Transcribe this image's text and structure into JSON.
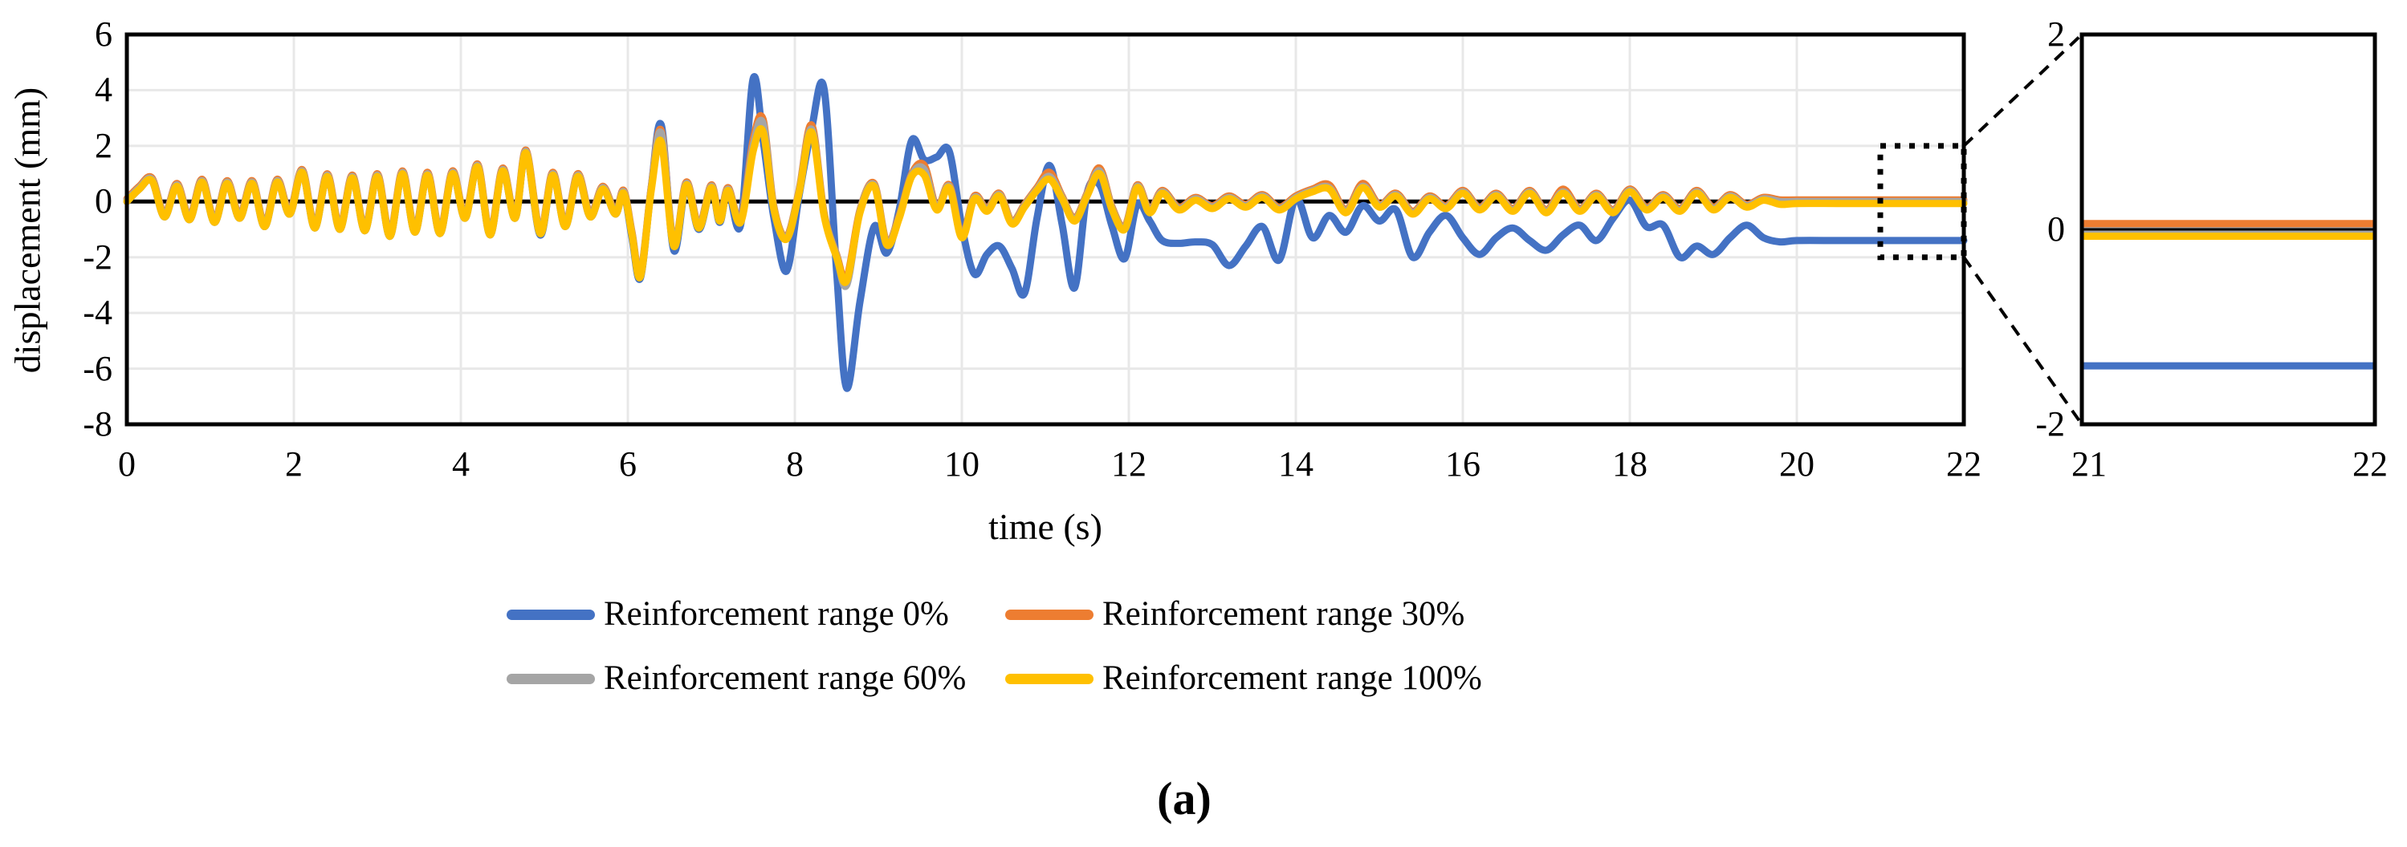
{
  "figure": {
    "caption": "(a)",
    "colors": {
      "blue": "#4472C4",
      "orange": "#ED7D31",
      "gray": "#A5A5A5",
      "yellow": "#FFC000",
      "grid": "#E8E8E8",
      "axis": "#000000"
    }
  },
  "chart_data": {
    "type": "line",
    "title": "",
    "xlabel": "time (s)",
    "ylabel": "displacement (mm)",
    "legend_position": "bottom",
    "main": {
      "xlim": [
        0,
        22
      ],
      "ylim": [
        -8,
        6
      ],
      "x_ticks": [
        0,
        2,
        4,
        6,
        8,
        10,
        12,
        14,
        16,
        18,
        20,
        22
      ],
      "y_ticks": [
        6,
        4,
        2,
        0,
        -2,
        -4,
        -6,
        -8
      ],
      "grid": true,
      "zoom_box": {
        "x": [
          21,
          22
        ],
        "y": [
          -2,
          2
        ]
      },
      "t": [
        0,
        0.15,
        0.3,
        0.45,
        0.6,
        0.75,
        0.9,
        1.05,
        1.2,
        1.35,
        1.5,
        1.65,
        1.8,
        1.95,
        2.1,
        2.25,
        2.4,
        2.55,
        2.7,
        2.85,
        3.0,
        3.15,
        3.3,
        3.45,
        3.6,
        3.75,
        3.9,
        4.05,
        4.2,
        4.35,
        4.5,
        4.65,
        4.78,
        4.95,
        5.1,
        5.25,
        5.4,
        5.55,
        5.7,
        5.85,
        5.95,
        6.05,
        6.15,
        6.28,
        6.4,
        6.55,
        6.7,
        6.85,
        7.0,
        7.1,
        7.2,
        7.35,
        7.5,
        7.62,
        7.75,
        7.9,
        8.05,
        8.2,
        8.35,
        8.5,
        8.62,
        8.78,
        8.95,
        9.1,
        9.25,
        9.4,
        9.55,
        9.7,
        9.85,
        10.0,
        10.15,
        10.3,
        10.45,
        10.6,
        10.75,
        10.9,
        11.05,
        11.2,
        11.35,
        11.5,
        11.65,
        11.8,
        11.95,
        12.1,
        12.25,
        12.4,
        12.6,
        12.8,
        13.0,
        13.2,
        13.4,
        13.6,
        13.8,
        14.0,
        14.2,
        14.4,
        14.6,
        14.8,
        15.0,
        15.2,
        15.4,
        15.6,
        15.8,
        16.0,
        16.2,
        16.4,
        16.6,
        16.8,
        17.0,
        17.2,
        17.4,
        17.6,
        17.8,
        18.0,
        18.2,
        18.4,
        18.6,
        18.8,
        19.0,
        19.2,
        19.4,
        19.6,
        19.8,
        20.0,
        20.5,
        21.0,
        21.5,
        22.0
      ],
      "series": [
        {
          "name": "Reinforcement range 0%",
          "color": "#4472C4",
          "v": [
            0,
            0.45,
            0.75,
            -0.55,
            0.55,
            -0.65,
            0.7,
            -0.75,
            0.65,
            -0.6,
            0.65,
            -0.9,
            0.7,
            -0.45,
            1.05,
            -0.95,
            0.9,
            -1.0,
            0.85,
            -1.05,
            0.9,
            -1.25,
            1.0,
            -1.1,
            0.95,
            -1.15,
            1.0,
            -0.6,
            1.25,
            -1.2,
            1.1,
            -0.6,
            1.75,
            -1.2,
            0.95,
            -0.9,
            0.9,
            -0.55,
            0.45,
            -0.45,
            0.3,
            -1.3,
            -2.75,
            0.5,
            2.75,
            -1.75,
            0.6,
            -1.0,
            0.5,
            -0.75,
            0.45,
            -0.85,
            4.4,
            2.2,
            -0.6,
            -2.5,
            0.2,
            2.6,
            4.05,
            -2.5,
            -6.7,
            -3.6,
            -0.9,
            -1.85,
            -0.3,
            2.2,
            1.5,
            1.6,
            1.8,
            -0.9,
            -2.6,
            -1.9,
            -1.6,
            -2.4,
            -3.3,
            -0.6,
            1.3,
            -0.8,
            -3.1,
            0.3,
            0.6,
            -0.9,
            -2.05,
            -0.1,
            -0.7,
            -1.4,
            -1.5,
            -1.45,
            -1.55,
            -2.3,
            -1.6,
            -0.9,
            -2.1,
            0.1,
            -1.3,
            -0.5,
            -1.1,
            -0.15,
            -0.7,
            -0.3,
            -2.0,
            -1.1,
            -0.5,
            -1.3,
            -1.9,
            -1.3,
            -0.95,
            -1.4,
            -1.75,
            -1.2,
            -0.85,
            -1.4,
            -0.6,
            0.05,
            -0.9,
            -0.85,
            -2.0,
            -1.6,
            -1.9,
            -1.3,
            -0.85,
            -1.3,
            -1.45,
            -1.4,
            -1.4,
            -1.4,
            -1.4,
            -1.4
          ]
        },
        {
          "name": "Reinforcement range 30%",
          "color": "#ED7D31",
          "v": [
            0.1,
            0.55,
            0.85,
            -0.45,
            0.65,
            -0.55,
            0.8,
            -0.65,
            0.75,
            -0.5,
            0.75,
            -0.8,
            0.8,
            -0.35,
            1.15,
            -0.85,
            1.0,
            -0.9,
            0.95,
            -0.95,
            1.0,
            -1.15,
            1.1,
            -1.0,
            1.05,
            -1.05,
            1.1,
            -0.5,
            1.35,
            -1.1,
            1.2,
            -0.5,
            1.85,
            -1.05,
            1.05,
            -0.8,
            1.0,
            -0.45,
            0.55,
            -0.35,
            0.4,
            -1.1,
            -2.6,
            0.5,
            2.55,
            -1.5,
            0.7,
            -0.85,
            0.6,
            -0.6,
            0.5,
            -0.65,
            2.2,
            2.95,
            -0.2,
            -1.25,
            0.4,
            2.75,
            -0.4,
            -1.9,
            -2.75,
            -0.3,
            0.65,
            -1.45,
            -0.5,
            1.0,
            1.3,
            -0.2,
            0.6,
            -1.2,
            0.2,
            -0.25,
            0.3,
            -0.7,
            -0.1,
            0.5,
            1.05,
            0.2,
            -0.6,
            0.3,
            1.2,
            -0.2,
            -0.9,
            0.6,
            -0.3,
            0.4,
            -0.2,
            0.15,
            -0.15,
            0.2,
            -0.1,
            0.25,
            -0.2,
            0.2,
            0.45,
            0.6,
            -0.3,
            0.65,
            -0.1,
            0.3,
            -0.35,
            0.2,
            -0.15,
            0.4,
            -0.2,
            0.3,
            -0.25,
            0.4,
            -0.3,
            0.45,
            -0.25,
            0.3,
            -0.3,
            0.45,
            -0.2,
            0.25,
            -0.25,
            0.4,
            -0.2,
            0.25,
            -0.1,
            0.15,
            0.06,
            0.06,
            0.06,
            0.06,
            0.06,
            0.06
          ]
        },
        {
          "name": "Reinforcement range 60%",
          "color": "#A5A5A5",
          "v": [
            0.05,
            0.5,
            0.8,
            -0.5,
            0.6,
            -0.6,
            0.75,
            -0.7,
            0.7,
            -0.55,
            0.7,
            -0.85,
            0.75,
            -0.4,
            1.1,
            -0.9,
            0.95,
            -0.95,
            0.9,
            -1.0,
            0.95,
            -1.2,
            1.05,
            -1.05,
            1.0,
            -1.1,
            1.05,
            -0.55,
            1.3,
            -1.15,
            1.15,
            -0.55,
            1.8,
            -1.1,
            1.0,
            -0.85,
            0.95,
            -0.5,
            0.5,
            -0.4,
            0.35,
            -1.15,
            -2.65,
            0.45,
            2.45,
            -1.55,
            0.65,
            -0.9,
            0.55,
            -0.65,
            0.45,
            -0.7,
            2.0,
            2.8,
            -0.25,
            -1.3,
            0.35,
            2.6,
            -0.45,
            -1.95,
            -3.0,
            -0.35,
            0.6,
            -1.5,
            -0.55,
            0.95,
            1.15,
            -0.25,
            0.55,
            -1.25,
            0.15,
            -0.3,
            0.25,
            -0.75,
            -0.15,
            0.45,
            0.9,
            0.15,
            -0.65,
            0.25,
            1.1,
            -0.25,
            -0.95,
            0.55,
            -0.35,
            0.35,
            -0.25,
            0.1,
            -0.2,
            0.15,
            -0.15,
            0.2,
            -0.25,
            0.15,
            0.4,
            0.5,
            -0.35,
            0.55,
            -0.15,
            0.25,
            -0.4,
            0.15,
            -0.2,
            0.35,
            -0.25,
            0.25,
            -0.3,
            0.35,
            -0.35,
            0.35,
            -0.3,
            0.25,
            -0.35,
            0.4,
            -0.25,
            0.2,
            -0.3,
            0.35,
            -0.25,
            0.2,
            -0.15,
            0.1,
            0.0,
            0.0,
            0.0,
            0.0,
            0.0,
            0.0
          ]
        },
        {
          "name": "Reinforcement range 100%",
          "color": "#FFC000",
          "v": [
            0,
            0.45,
            0.75,
            -0.55,
            0.55,
            -0.65,
            0.7,
            -0.75,
            0.65,
            -0.6,
            0.65,
            -0.9,
            0.7,
            -0.45,
            1.05,
            -0.95,
            0.9,
            -1.0,
            0.85,
            -1.05,
            0.9,
            -1.25,
            1.0,
            -1.1,
            0.95,
            -1.15,
            1.0,
            -0.6,
            1.25,
            -1.2,
            1.1,
            -0.6,
            1.75,
            -1.15,
            0.95,
            -0.9,
            0.9,
            -0.55,
            0.45,
            -0.45,
            0.3,
            -1.2,
            -2.7,
            0.4,
            2.15,
            -1.6,
            0.6,
            -0.95,
            0.5,
            -0.7,
            0.4,
            -0.75,
            1.8,
            2.5,
            -0.3,
            -1.35,
            0.3,
            2.5,
            -0.5,
            -2.0,
            -2.85,
            -0.4,
            0.55,
            -1.55,
            -0.6,
            0.9,
            0.95,
            -0.3,
            0.5,
            -1.3,
            0.1,
            -0.35,
            0.2,
            -0.8,
            -0.2,
            0.4,
            0.8,
            0.1,
            -0.7,
            0.2,
            1.0,
            -0.3,
            -1.0,
            0.5,
            -0.4,
            0.3,
            -0.3,
            0.05,
            -0.25,
            0.1,
            -0.2,
            0.15,
            -0.3,
            0.1,
            0.35,
            0.45,
            -0.4,
            0.5,
            -0.2,
            0.2,
            -0.45,
            0.1,
            -0.25,
            0.3,
            -0.3,
            0.2,
            -0.35,
            0.3,
            -0.4,
            0.3,
            -0.35,
            0.2,
            -0.4,
            0.35,
            -0.3,
            0.15,
            -0.35,
            0.3,
            -0.3,
            0.15,
            -0.2,
            0.05,
            -0.1,
            -0.07,
            -0.07,
            -0.07,
            -0.07,
            -0.07
          ]
        }
      ]
    },
    "inset": {
      "xlim": [
        21,
        22
      ],
      "ylim": [
        -2,
        2
      ],
      "x_ticks": [
        21,
        22
      ],
      "y_ticks": [
        2,
        0,
        -2
      ],
      "series": [
        {
          "name": "Reinforcement range 60%",
          "color": "#A5A5A5",
          "value": 0.0
        },
        {
          "name": "Reinforcement range 30%",
          "color": "#ED7D31",
          "value": 0.06
        },
        {
          "name": "Reinforcement range 100%",
          "color": "#FFC000",
          "value": -0.07
        },
        {
          "name": "Reinforcement range 0%",
          "color": "#4472C4",
          "value": -1.4
        }
      ]
    }
  }
}
